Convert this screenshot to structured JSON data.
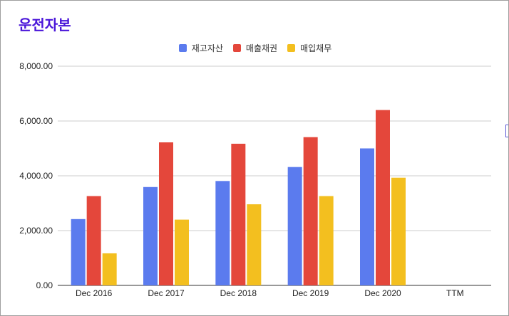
{
  "chart_data": {
    "type": "bar",
    "title": "운전자본",
    "categories": [
      "Dec 2016",
      "Dec 2017",
      "Dec 2018",
      "Dec 2019",
      "Dec 2020",
      "TTM"
    ],
    "series": [
      {
        "name": "재고자산",
        "color": "#5b7bee",
        "values": [
          2420,
          3590,
          3810,
          4320,
          5000,
          null
        ]
      },
      {
        "name": "매출채권",
        "color": "#e4473b",
        "values": [
          3260,
          5220,
          5170,
          5410,
          6400,
          null
        ]
      },
      {
        "name": "매입채무",
        "color": "#f3bf1f",
        "values": [
          1170,
          2400,
          2960,
          3260,
          3930,
          null
        ]
      }
    ],
    "yticks": [
      "0.00",
      "2,000.00",
      "4,000.00",
      "6,000.00",
      "8,000.00"
    ],
    "ylim": [
      0,
      8000
    ],
    "xlabel": "",
    "ylabel": "",
    "grid": true,
    "legend_position": "top-center"
  }
}
